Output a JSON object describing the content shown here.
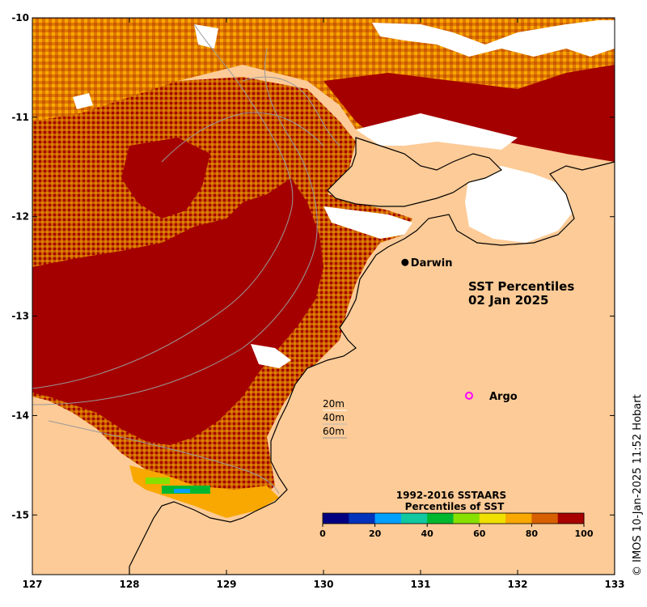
{
  "map": {
    "title_line1": "SST Percentiles",
    "title_line2": "02 Jan 2025",
    "x_ticks": [
      "127",
      "128",
      "129",
      "130",
      "131",
      "132",
      "133"
    ],
    "y_ticks": [
      "-10",
      "-11",
      "-12",
      "-13",
      "-14",
      "-15"
    ],
    "x_range": [
      127,
      133
    ],
    "y_range": [
      -15.6,
      -10
    ],
    "places": [
      {
        "name": "Darwin",
        "lon": 130.84,
        "lat": -12.46,
        "marker": "filled-circle"
      }
    ],
    "argo": {
      "label": "Argo",
      "lon": 131.5,
      "lat": -13.8,
      "color": "#ff00ff"
    },
    "depth_legend": [
      "20m",
      "40m",
      "60m"
    ],
    "land_color": "#fdcb97",
    "credit": "© IMOS 10-Jan-2025 11:52 Hobart"
  },
  "colorbar": {
    "title_line1": "1992-2016 SSTAARS",
    "title_line2": "Percentiles of SST",
    "ticks": [
      "0",
      "20",
      "40",
      "60",
      "80",
      "100"
    ],
    "colors": [
      "#000080",
      "#0033bb",
      "#00a0ff",
      "#12c8a0",
      "#00b830",
      "#88e000",
      "#f0e000",
      "#f8a800",
      "#d86000",
      "#a80000"
    ]
  }
}
